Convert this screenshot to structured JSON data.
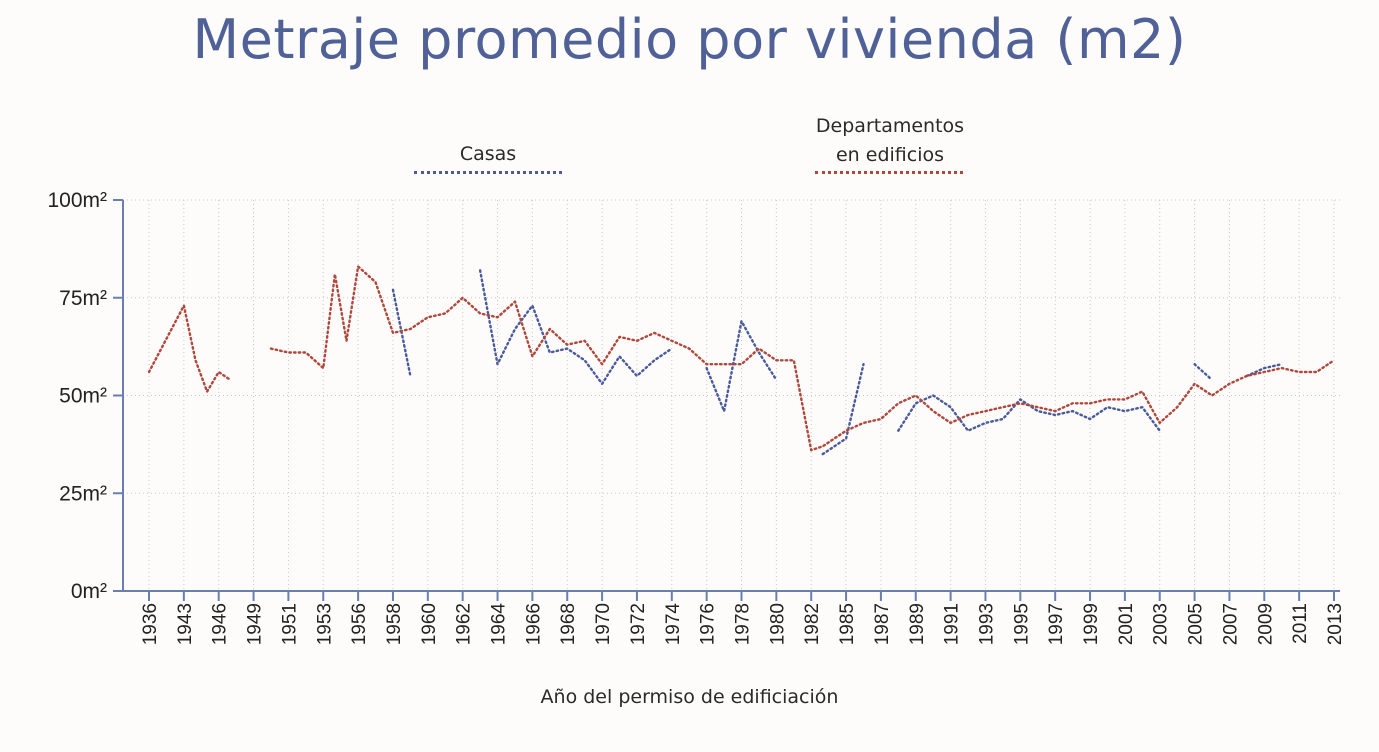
{
  "chart_data": {
    "type": "line",
    "title": "Metraje promedio por vivienda (m2)",
    "xlabel": "Año del permiso de edificiación",
    "ylabel": "",
    "ylim": [
      0,
      100
    ],
    "y_ticks": [
      0,
      25,
      50,
      75,
      100
    ],
    "y_tick_labels": [
      "0m²",
      "25m²",
      "50m²",
      "75m²",
      "100m²"
    ],
    "grid": true,
    "legend_position": "top-center",
    "x_ticks": [
      1936,
      1943,
      1946,
      1949,
      1951,
      1953,
      1956,
      1958,
      1960,
      1962,
      1964,
      1966,
      1968,
      1970,
      1972,
      1974,
      1976,
      1978,
      1980,
      1982,
      1985,
      1987,
      1989,
      1991,
      1993,
      1995,
      1997,
      1999,
      2001,
      2003,
      2005,
      2007,
      2009,
      2011,
      2013
    ],
    "x_tick_labels": [
      "1936",
      "1943",
      "1946",
      "1949",
      "1951",
      "1953",
      "1956",
      "1958",
      "1960",
      "1962",
      "1964",
      "1966",
      "1968",
      "1970",
      "1972",
      "1974",
      "1976",
      "1978",
      "1980",
      "1982",
      "1985",
      "1987",
      "1989",
      "1991",
      "1993",
      "1995",
      "1997",
      "1999",
      "2001",
      "2003",
      "2005",
      "2007",
      "2009",
      "2011",
      "2013"
    ],
    "series": [
      {
        "name": "Casas",
        "color": "#4a5a9c",
        "points": [
          [
            1958,
            77
          ],
          [
            1959,
            55
          ],
          null,
          [
            1963,
            82
          ],
          [
            1964,
            58
          ],
          [
            1965,
            67
          ],
          [
            1966,
            73
          ],
          [
            1967,
            61
          ],
          [
            1968,
            62
          ],
          [
            1969,
            59
          ],
          [
            1970,
            53
          ],
          [
            1971,
            60
          ],
          [
            1972,
            55
          ],
          [
            1973,
            59
          ],
          [
            1974,
            62
          ],
          null,
          [
            1976,
            57
          ],
          [
            1977,
            46
          ],
          [
            1978,
            69
          ],
          [
            1979,
            61
          ],
          [
            1980,
            54
          ],
          null,
          [
            1983,
            35
          ],
          [
            1984,
            37
          ],
          [
            1985,
            39
          ],
          [
            1986,
            58
          ],
          null,
          [
            1988,
            41
          ],
          [
            1989,
            48
          ],
          [
            1990,
            50
          ],
          [
            1991,
            47
          ],
          [
            1992,
            41
          ],
          [
            1993,
            43
          ],
          [
            1994,
            44
          ],
          [
            1995,
            49
          ],
          [
            1996,
            46
          ],
          [
            1997,
            45
          ],
          [
            1998,
            46
          ],
          [
            1999,
            44
          ],
          [
            2000,
            47
          ],
          [
            2001,
            46
          ],
          [
            2002,
            47
          ],
          [
            2003,
            41
          ],
          null,
          [
            2005,
            58
          ],
          [
            2006,
            54
          ],
          null,
          [
            2008,
            55
          ],
          [
            2009,
            57
          ],
          [
            2010,
            58
          ]
        ]
      },
      {
        "name": "Departamentos en edificios",
        "color": "#b0473b",
        "points": [
          [
            1936,
            56
          ],
          [
            1943,
            73
          ],
          [
            1944,
            59
          ],
          [
            1945,
            51
          ],
          [
            1946,
            56
          ],
          [
            1947,
            54
          ],
          null,
          [
            1950,
            62
          ],
          [
            1951,
            61
          ],
          [
            1952,
            61
          ],
          [
            1953,
            57
          ],
          [
            1954,
            81
          ],
          [
            1955,
            64
          ],
          [
            1956,
            83
          ],
          [
            1957,
            79
          ],
          [
            1958,
            66
          ],
          [
            1959,
            67
          ],
          [
            1960,
            70
          ],
          [
            1961,
            71
          ],
          [
            1962,
            75
          ],
          [
            1963,
            71
          ],
          [
            1964,
            70
          ],
          [
            1965,
            74
          ],
          [
            1966,
            60
          ],
          [
            1967,
            67
          ],
          [
            1968,
            63
          ],
          [
            1969,
            64
          ],
          [
            1970,
            58
          ],
          [
            1971,
            65
          ],
          [
            1972,
            64
          ],
          [
            1973,
            66
          ],
          [
            1974,
            64
          ],
          [
            1975,
            62
          ],
          [
            1976,
            58
          ],
          [
            1977,
            58
          ],
          [
            1978,
            58
          ],
          [
            1979,
            62
          ],
          [
            1980,
            59
          ],
          [
            1981,
            59
          ],
          [
            1982,
            36
          ],
          [
            1983,
            37
          ],
          [
            1984,
            39
          ],
          [
            1985,
            41
          ],
          [
            1986,
            43
          ],
          [
            1987,
            44
          ],
          [
            1988,
            48
          ],
          [
            1989,
            50
          ],
          [
            1990,
            46
          ],
          [
            1991,
            43
          ],
          [
            1992,
            45
          ],
          [
            1993,
            46
          ],
          [
            1994,
            47
          ],
          [
            1995,
            48
          ],
          [
            1996,
            47
          ],
          [
            1997,
            46
          ],
          [
            1998,
            48
          ],
          [
            1999,
            48
          ],
          [
            2000,
            49
          ],
          [
            2001,
            49
          ],
          [
            2002,
            51
          ],
          [
            2003,
            43
          ],
          [
            2004,
            47
          ],
          [
            2005,
            53
          ],
          [
            2006,
            50
          ],
          [
            2007,
            53
          ],
          [
            2008,
            55
          ],
          [
            2009,
            56
          ],
          [
            2010,
            57
          ],
          [
            2011,
            56
          ],
          [
            2012,
            56
          ],
          [
            2013,
            59
          ]
        ]
      }
    ]
  }
}
